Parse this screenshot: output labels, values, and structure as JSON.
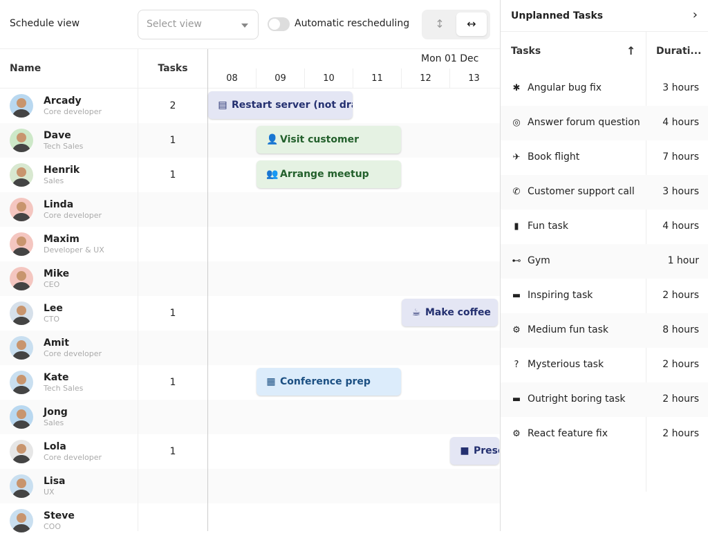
{
  "toolbar": {
    "schedule_view_label": "Schedule view",
    "select_placeholder": "Select view",
    "auto_reschedule_label": "Automatic rescheduling",
    "auto_reschedule_on": false,
    "orientation_vertical_icon": "arrows-vertical",
    "orientation_horizontal_icon": "arrows-horizontal",
    "orientation_selected": "horizontal"
  },
  "grid": {
    "name_header": "Name",
    "tasks_header": "Tasks",
    "date": "Mon 01 Dec",
    "hours": [
      "08",
      "09",
      "10",
      "11",
      "12",
      "13"
    ]
  },
  "resources": [
    {
      "name": "Arcady",
      "role": "Core developer",
      "tasks": "2",
      "avatar_color": "#b9d8f0"
    },
    {
      "name": "Dave",
      "role": "Tech Sales",
      "tasks": "1",
      "avatar_color": "#cde8c8"
    },
    {
      "name": "Henrik",
      "role": "Sales",
      "tasks": "1",
      "avatar_color": "#d8e8d0"
    },
    {
      "name": "Linda",
      "role": "Core developer",
      "tasks": "",
      "avatar_color": "#f4c6c0"
    },
    {
      "name": "Maxim",
      "role": "Developer & UX",
      "tasks": "",
      "avatar_color": "#f4c6c0"
    },
    {
      "name": "Mike",
      "role": "CEO",
      "tasks": "",
      "avatar_color": "#f4c6c0"
    },
    {
      "name": "Lee",
      "role": "CTO",
      "tasks": "1",
      "avatar_color": "#d6e0ea"
    },
    {
      "name": "Amit",
      "role": "Core developer",
      "tasks": "",
      "avatar_color": "#c9dff0"
    },
    {
      "name": "Kate",
      "role": "Tech Sales",
      "tasks": "1",
      "avatar_color": "#c9dff0"
    },
    {
      "name": "Jong",
      "role": "Sales",
      "tasks": "",
      "avatar_color": "#b9d8f0"
    },
    {
      "name": "Lola",
      "role": "Core developer",
      "tasks": "1",
      "avatar_color": "#e6e6e6"
    },
    {
      "name": "Lisa",
      "role": "UX",
      "tasks": "",
      "avatar_color": "#c9dff0"
    },
    {
      "name": "Steve",
      "role": "COO",
      "tasks": "",
      "avatar_color": "#c9dff0"
    }
  ],
  "events": [
    {
      "name": "Restart server (not dra",
      "icon": "server",
      "row": 0,
      "start": 8,
      "end": 11,
      "style": "ind"
    },
    {
      "name": "Visit customer",
      "icon": "user",
      "row": 1,
      "start": 9,
      "end": 12,
      "style": "grn"
    },
    {
      "name": "Arrange meetup",
      "icon": "users",
      "row": 2,
      "start": 9,
      "end": 12,
      "style": "grn"
    },
    {
      "name": "Make coffee",
      "icon": "coffee",
      "row": 6,
      "start": 12,
      "end": 14,
      "style": "ind"
    },
    {
      "name": "Conference prep",
      "icon": "building",
      "row": 8,
      "start": 9,
      "end": 12,
      "style": "blu"
    },
    {
      "name": "Presentation",
      "icon": "video",
      "row": 10,
      "start": 13,
      "end": 15,
      "style": "ind"
    }
  ],
  "panel": {
    "title": "Unplanned Tasks",
    "tasks_header": "Tasks",
    "duration_header": "Durati...",
    "sort": "ascending",
    "tasks": [
      {
        "name": "Angular bug fix",
        "icon": "bug",
        "duration": "3 hours"
      },
      {
        "name": "Answer forum question",
        "icon": "life-ring",
        "duration": "4 hours"
      },
      {
        "name": "Book flight",
        "icon": "plane",
        "duration": "7 hours"
      },
      {
        "name": "Customer support call",
        "icon": "phone",
        "duration": "3 hours"
      },
      {
        "name": "Fun task",
        "icon": "mug",
        "duration": "4 hours"
      },
      {
        "name": "Gym",
        "icon": "dumbbell",
        "duration": "1 hour"
      },
      {
        "name": "Inspiring task",
        "icon": "book",
        "duration": "2 hours"
      },
      {
        "name": "Medium fun task",
        "icon": "gear",
        "duration": "8 hours"
      },
      {
        "name": "Mysterious task",
        "icon": "question",
        "duration": "2 hours"
      },
      {
        "name": "Outright boring task",
        "icon": "book",
        "duration": "2 hours"
      },
      {
        "name": "React feature fix",
        "icon": "gear",
        "duration": "2 hours"
      }
    ]
  }
}
